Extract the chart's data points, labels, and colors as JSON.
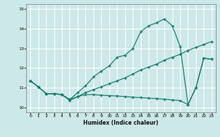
{
  "xlabel": "Humidex (Indice chaleur)",
  "background_color": "#cce8e8",
  "grid_color": "#ffffff",
  "line_color": "#1a7a6e",
  "xlim": [
    -0.5,
    23.5
  ],
  "ylim": [
    9.75,
    15.25
  ],
  "xticks": [
    0,
    1,
    2,
    3,
    4,
    5,
    6,
    7,
    8,
    9,
    10,
    11,
    12,
    13,
    14,
    15,
    16,
    17,
    18,
    19,
    20,
    21,
    22,
    23
  ],
  "yticks": [
    10,
    11,
    12,
    13,
    14,
    15
  ],
  "curve_upper_x": [
    0,
    1,
    2,
    3,
    4,
    5,
    6,
    7,
    8,
    9,
    10,
    11,
    12,
    13,
    14,
    15,
    16,
    17,
    18,
    19,
    20,
    21,
    22,
    23
  ],
  "curve_upper_y": [
    11.35,
    11.05,
    10.7,
    10.7,
    10.65,
    10.4,
    10.75,
    11.1,
    11.55,
    11.85,
    12.1,
    12.55,
    12.65,
    13.0,
    13.85,
    14.15,
    14.3,
    14.5,
    14.15,
    13.1,
    10.15,
    11.0,
    12.5,
    12.45
  ],
  "curve_lower_x": [
    0,
    1,
    2,
    3,
    4,
    5,
    6,
    7,
    8,
    9,
    10,
    11,
    12,
    13,
    14,
    15,
    16,
    17,
    18,
    19,
    20,
    21,
    22,
    23
  ],
  "curve_lower_y": [
    11.35,
    11.05,
    10.7,
    10.7,
    10.65,
    10.35,
    10.55,
    10.65,
    10.65,
    10.62,
    10.6,
    10.58,
    10.55,
    10.52,
    10.5,
    10.47,
    10.45,
    10.42,
    10.38,
    10.35,
    10.15,
    11.0,
    12.5,
    12.45
  ],
  "curve_diag_x": [
    0,
    1,
    2,
    3,
    4,
    5,
    6,
    7,
    8,
    9,
    10,
    11,
    12,
    13,
    14,
    15,
    16,
    17,
    18,
    19,
    20,
    21,
    22,
    23
  ],
  "curve_diag_y": [
    11.35,
    11.05,
    10.7,
    10.7,
    10.65,
    10.4,
    10.55,
    10.75,
    10.9,
    11.05,
    11.2,
    11.35,
    11.5,
    11.7,
    11.9,
    12.05,
    12.2,
    12.4,
    12.55,
    12.7,
    12.9,
    13.05,
    13.2,
    13.35
  ]
}
